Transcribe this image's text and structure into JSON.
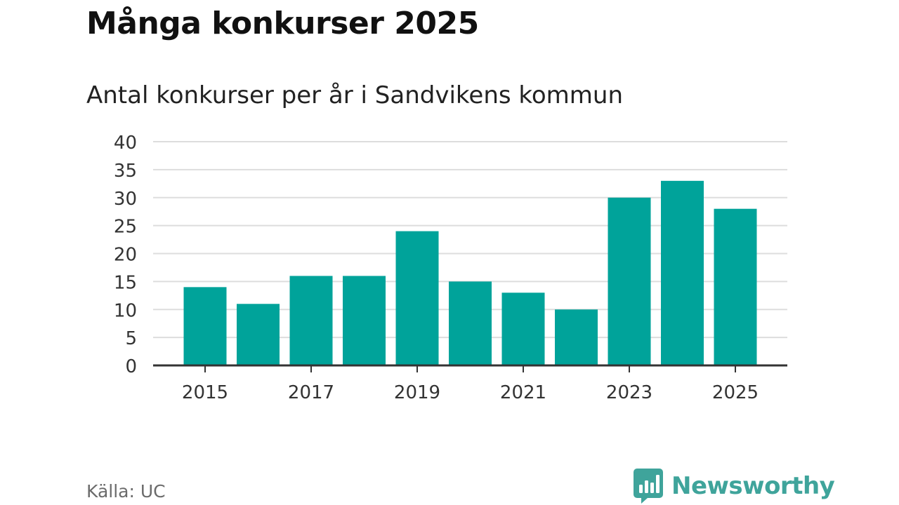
{
  "title": "Många konkurser 2025",
  "subtitle": "Antal konkurser per år i Sandvikens kommun",
  "source": "Källa: UC",
  "brand": {
    "name": "Newsworthy"
  },
  "colors": {
    "bar": "#00a39a",
    "grid": "#dddddd",
    "axis": "#333333",
    "text": "#333333",
    "brand": "#3fa49b"
  },
  "chart_data": {
    "type": "bar",
    "title": "Många konkurser 2025",
    "subtitle": "Antal konkurser per år i Sandvikens kommun",
    "xlabel": "",
    "ylabel": "",
    "categories": [
      "2015",
      "2016",
      "2017",
      "2018",
      "2019",
      "2020",
      "2021",
      "2022",
      "2023",
      "2024",
      "2025"
    ],
    "values": [
      14,
      11,
      16,
      16,
      24,
      15,
      13,
      10,
      30,
      33,
      28
    ],
    "x_tick_labels": [
      "2015",
      "2017",
      "2019",
      "2021",
      "2023",
      "2025"
    ],
    "y_ticks": [
      0,
      5,
      10,
      15,
      20,
      25,
      30,
      35,
      40
    ],
    "ylim": [
      0,
      40
    ],
    "grid": true,
    "legend": "none"
  }
}
